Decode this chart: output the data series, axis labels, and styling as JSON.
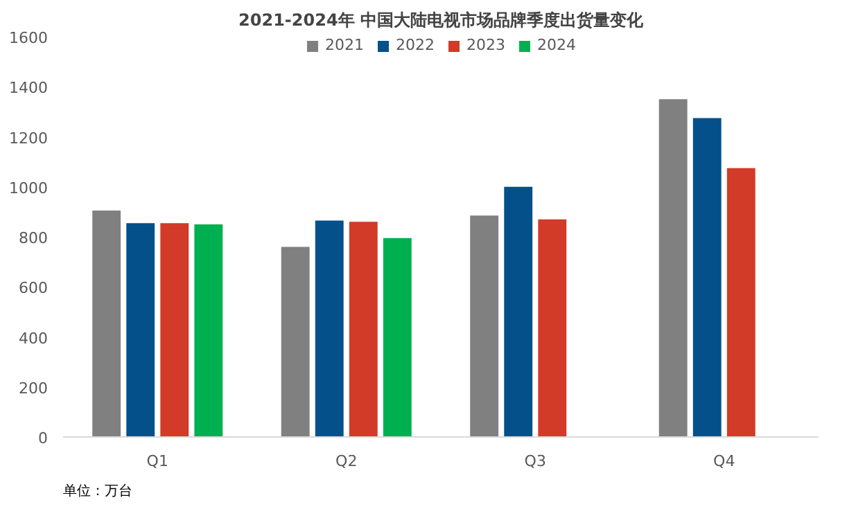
{
  "chart_data": {
    "type": "bar",
    "title": "2021-2024年 中国大陆电视市场品牌季度出货量变化",
    "categories": [
      "Q1",
      "Q2",
      "Q3",
      "Q4"
    ],
    "series": [
      {
        "name": "2021",
        "color": "#808080",
        "values": [
          905,
          760,
          885,
          1350
        ]
      },
      {
        "name": "2022",
        "color": "#03508a",
        "values": [
          855,
          865,
          1000,
          1275
        ]
      },
      {
        "name": "2023",
        "color": "#d13b27",
        "values": [
          855,
          860,
          870,
          1075
        ]
      },
      {
        "name": "2024",
        "color": "#00b050",
        "values": [
          850,
          795,
          null,
          null
        ]
      }
    ],
    "ylim": [
      0,
      1600
    ],
    "yticks": [
      0,
      200,
      400,
      600,
      800,
      1000,
      1200,
      1400,
      1600
    ],
    "grid": false,
    "legend": "top",
    "annotations": [
      "单位：万台"
    ]
  }
}
